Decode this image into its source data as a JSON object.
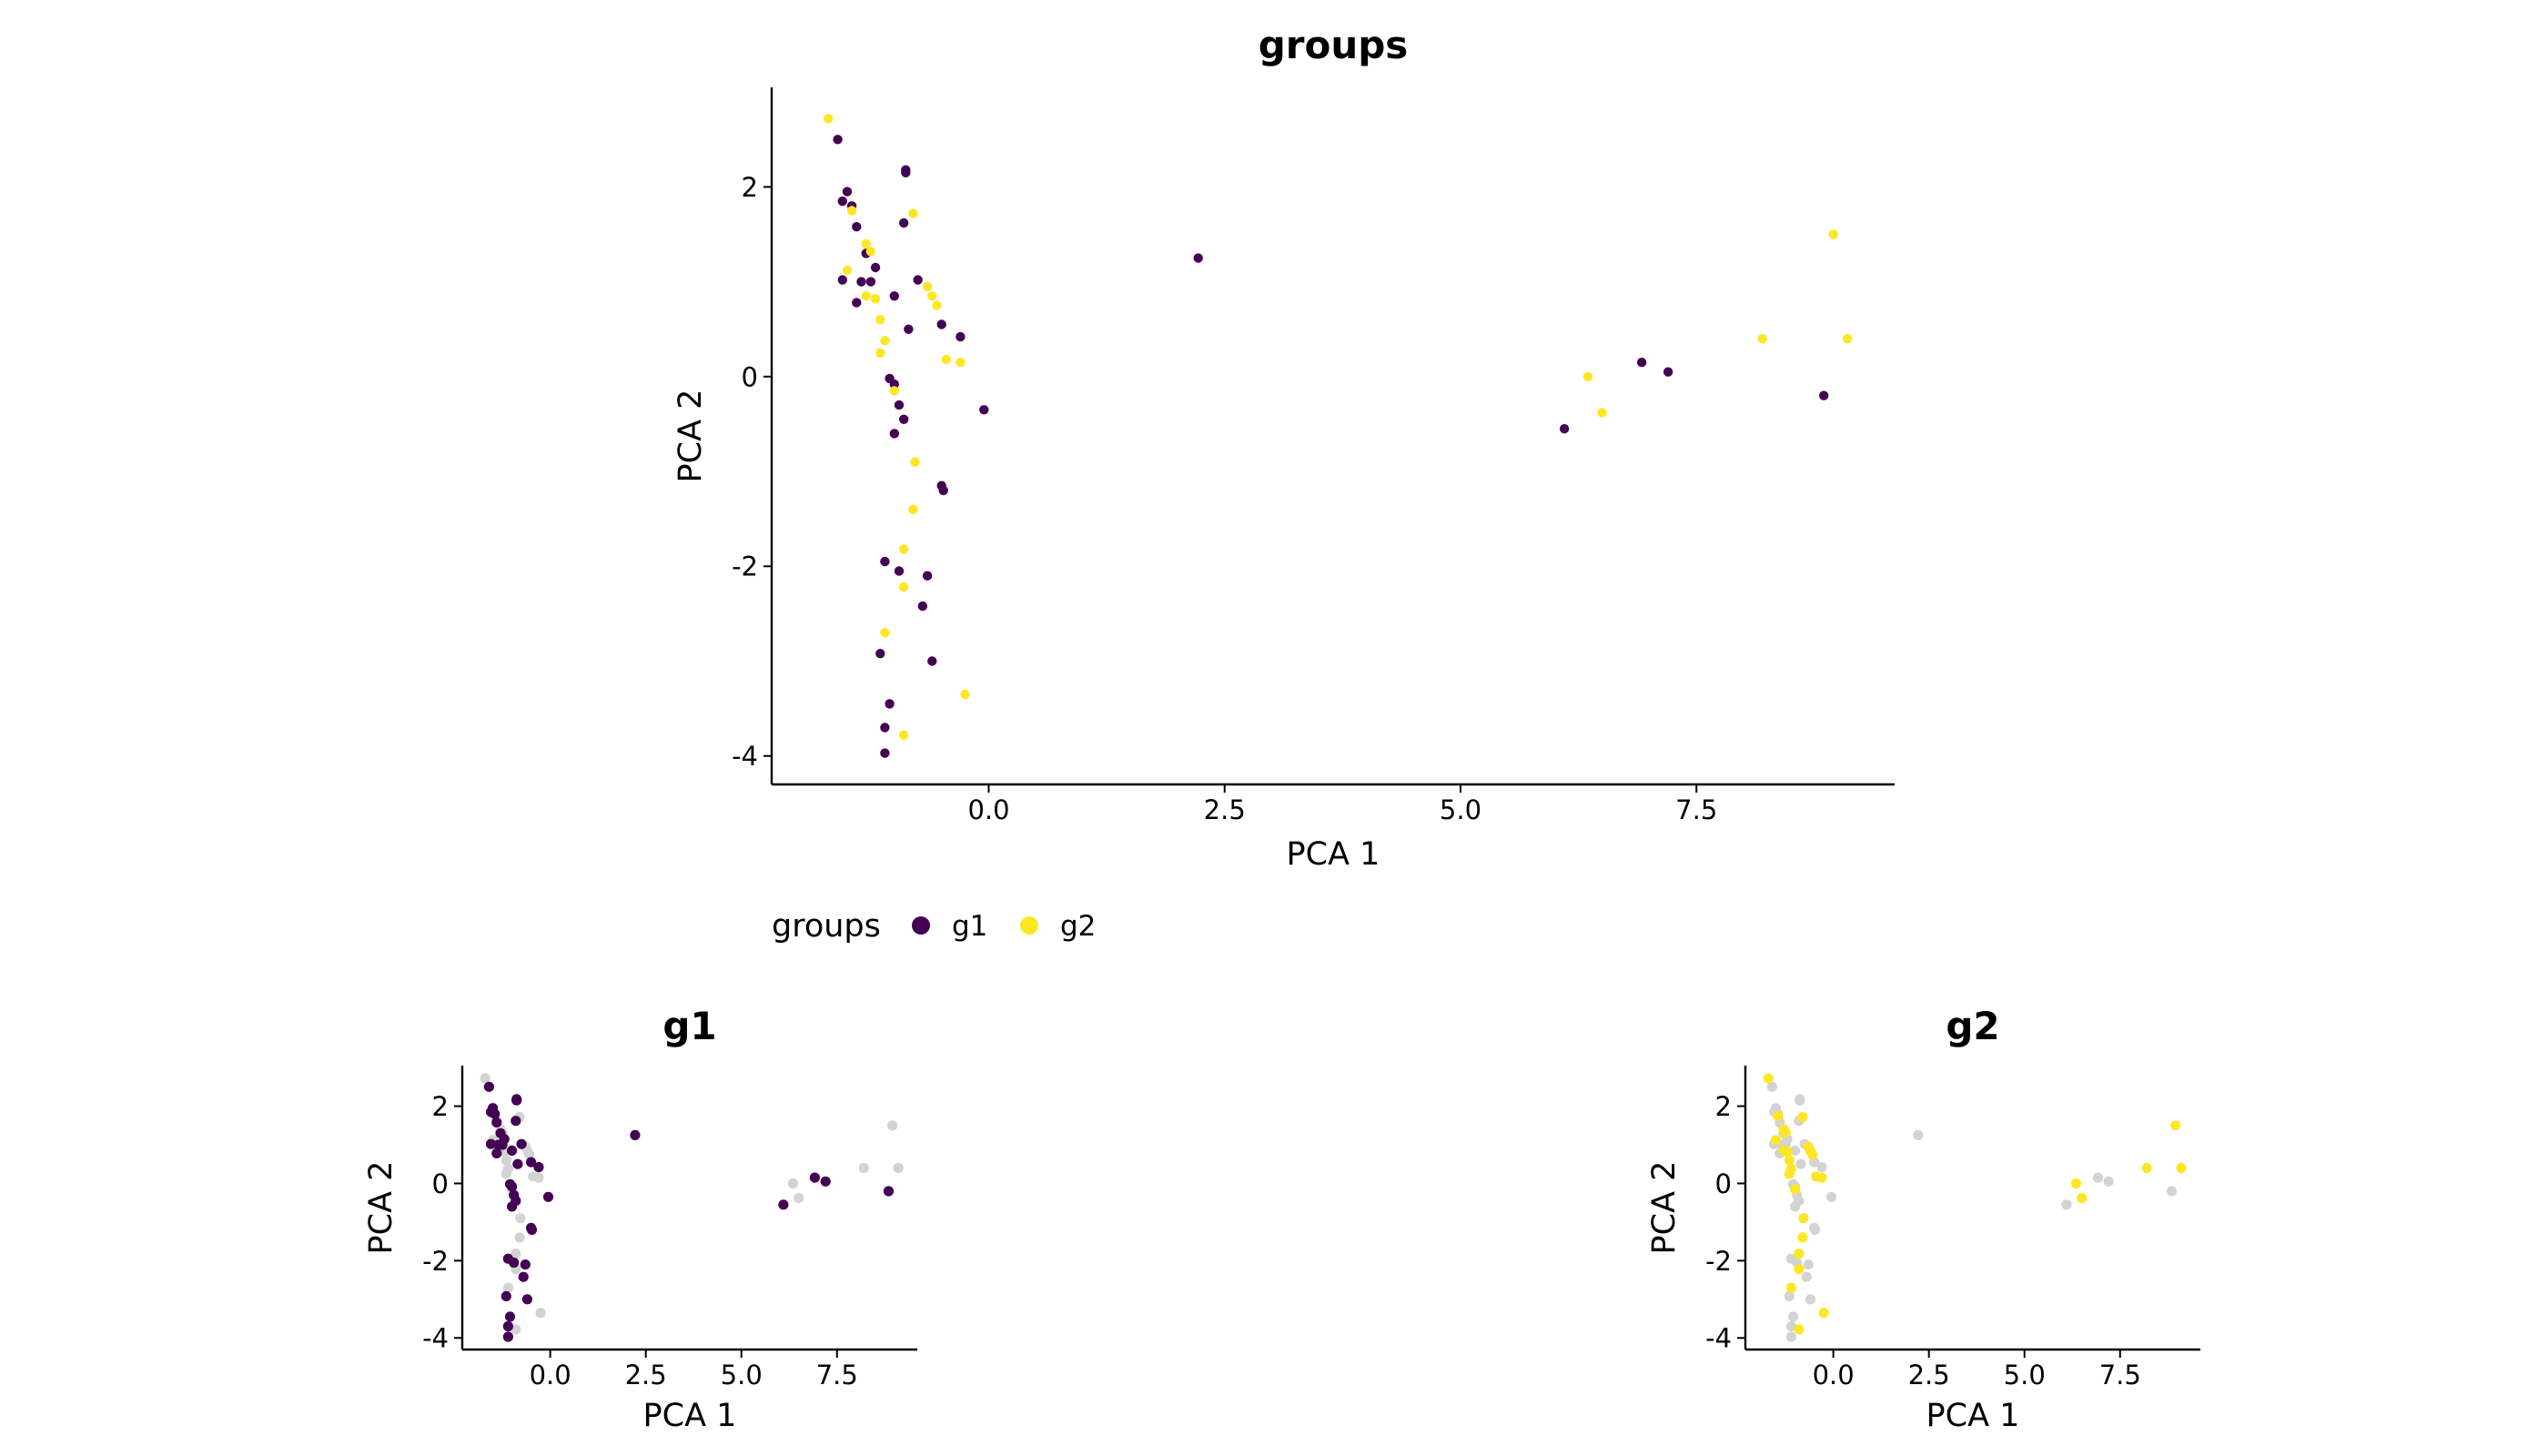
{
  "colors": {
    "g1": "#440154",
    "g2": "#FDE725",
    "muted": "#D3D3D3",
    "axis": "#000000"
  },
  "legend": {
    "title": "groups",
    "items": [
      "g1",
      "g2"
    ]
  },
  "chart_data": [
    {
      "type": "scatter",
      "title": "groups",
      "xlabel": "PCA 1",
      "ylabel": "PCA 2",
      "xlim": [
        -2.3,
        9.6
      ],
      "ylim": [
        -4.3,
        3.05
      ],
      "xticks": [
        0.0,
        2.5,
        5.0,
        7.5
      ],
      "xtick_labels": [
        "0.0",
        "2.5",
        "5.0",
        "7.5"
      ],
      "yticks": [
        -4,
        -2,
        0,
        2
      ],
      "ytick_labels": [
        "-4",
        "-2",
        "0",
        "2"
      ],
      "highlight": null,
      "series": [
        {
          "name": "g1",
          "points": [
            [
              -1.6,
              2.5
            ],
            [
              -1.5,
              1.95
            ],
            [
              -1.55,
              1.85
            ],
            [
              -1.45,
              1.8
            ],
            [
              -1.4,
              1.58
            ],
            [
              -1.55,
              1.02
            ],
            [
              -1.35,
              1.0
            ],
            [
              -1.3,
              1.3
            ],
            [
              -1.2,
              1.15
            ],
            [
              -1.25,
              1.0
            ],
            [
              -1.4,
              0.78
            ],
            [
              -0.88,
              2.18
            ],
            [
              -0.88,
              2.15
            ],
            [
              -0.9,
              1.62
            ],
            [
              -0.75,
              1.02
            ],
            [
              -1.0,
              0.85
            ],
            [
              -0.85,
              0.5
            ],
            [
              -0.5,
              0.55
            ],
            [
              -0.3,
              0.42
            ],
            [
              -0.05,
              -0.35
            ],
            [
              -1.05,
              -0.02
            ],
            [
              -1.0,
              -0.08
            ],
            [
              -0.95,
              -0.3
            ],
            [
              -0.9,
              -0.45
            ],
            [
              -1.0,
              -0.6
            ],
            [
              -0.5,
              -1.15
            ],
            [
              -0.48,
              -1.2
            ],
            [
              -1.1,
              -1.95
            ],
            [
              -0.95,
              -2.05
            ],
            [
              -0.65,
              -2.1
            ],
            [
              -0.7,
              -2.42
            ],
            [
              -1.15,
              -2.92
            ],
            [
              -0.6,
              -3.0
            ],
            [
              -1.05,
              -3.45
            ],
            [
              -1.1,
              -3.7
            ],
            [
              -1.1,
              -3.97
            ],
            [
              2.22,
              1.25
            ],
            [
              6.1,
              -0.55
            ],
            [
              6.92,
              0.15
            ],
            [
              7.2,
              0.05
            ],
            [
              8.85,
              -0.2
            ]
          ]
        },
        {
          "name": "g2",
          "points": [
            [
              -1.7,
              2.72
            ],
            [
              -1.45,
              1.75
            ],
            [
              -1.5,
              1.12
            ],
            [
              -1.3,
              1.4
            ],
            [
              -1.25,
              1.32
            ],
            [
              -1.3,
              0.85
            ],
            [
              -1.2,
              0.82
            ],
            [
              -1.15,
              0.25
            ],
            [
              -1.15,
              0.6
            ],
            [
              -1.1,
              0.38
            ],
            [
              -1.0,
              -0.15
            ],
            [
              -0.8,
              1.72
            ],
            [
              -0.65,
              0.95
            ],
            [
              -0.6,
              0.85
            ],
            [
              -0.55,
              0.75
            ],
            [
              -0.45,
              0.18
            ],
            [
              -0.3,
              0.15
            ],
            [
              -0.78,
              -0.9
            ],
            [
              -0.8,
              -1.4
            ],
            [
              -0.9,
              -1.82
            ],
            [
              -0.9,
              -2.22
            ],
            [
              -1.1,
              -2.7
            ],
            [
              -0.9,
              -3.78
            ],
            [
              -0.25,
              -3.35
            ],
            [
              6.35,
              0.0
            ],
            [
              6.5,
              -0.38
            ],
            [
              8.2,
              0.4
            ],
            [
              8.95,
              1.5
            ],
            [
              9.1,
              0.4
            ]
          ]
        }
      ]
    },
    {
      "type": "scatter",
      "title": "g1",
      "xlabel": "PCA 1",
      "ylabel": "PCA 2",
      "xlim": [
        -2.3,
        9.6
      ],
      "ylim": [
        -4.3,
        3.05
      ],
      "xticks": [
        0.0,
        2.5,
        5.0,
        7.5
      ],
      "xtick_labels": [
        "0.0",
        "2.5",
        "5.0",
        "7.5"
      ],
      "yticks": [
        -4,
        -2,
        0,
        2
      ],
      "ytick_labels": [
        "-4",
        "-2",
        "0",
        "2"
      ],
      "highlight": "g1"
    },
    {
      "type": "scatter",
      "title": "g2",
      "xlabel": "PCA 1",
      "ylabel": "PCA 2",
      "xlim": [
        -2.3,
        9.6
      ],
      "ylim": [
        -4.3,
        3.05
      ],
      "xticks": [
        0.0,
        2.5,
        5.0,
        7.5
      ],
      "xtick_labels": [
        "0.0",
        "2.5",
        "5.0",
        "7.5"
      ],
      "yticks": [
        -4,
        -2,
        0,
        2
      ],
      "ytick_labels": [
        "-4",
        "-2",
        "0",
        "2"
      ],
      "highlight": "g2"
    }
  ]
}
